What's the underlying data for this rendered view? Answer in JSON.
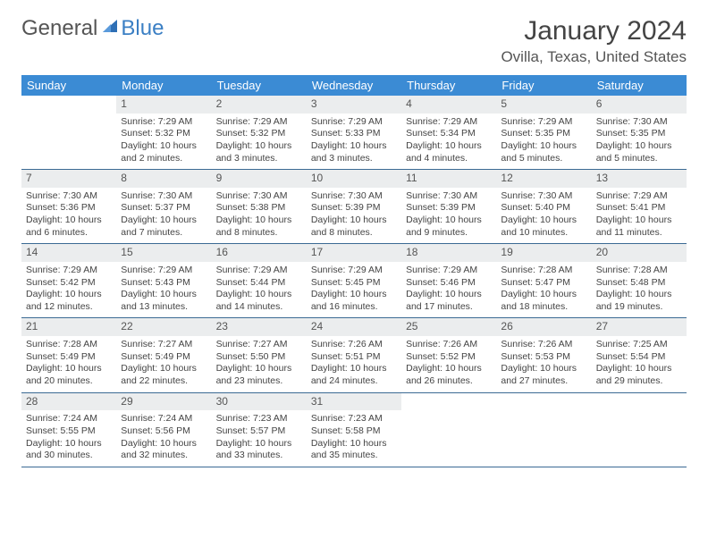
{
  "logo": {
    "part1": "General",
    "part2": "Blue"
  },
  "title": "January 2024",
  "location": "Ovilla, Texas, United States",
  "colors": {
    "header_bg": "#3b8bd4",
    "header_text": "#ffffff",
    "daynum_bg": "#ebedee",
    "row_border": "#3b6a94",
    "logo_blue": "#3b7fc4",
    "text": "#444444"
  },
  "day_names": [
    "Sunday",
    "Monday",
    "Tuesday",
    "Wednesday",
    "Thursday",
    "Friday",
    "Saturday"
  ],
  "weeks": [
    [
      {
        "n": "",
        "sr": "",
        "ss": "",
        "dl": ""
      },
      {
        "n": "1",
        "sr": "Sunrise: 7:29 AM",
        "ss": "Sunset: 5:32 PM",
        "dl": "Daylight: 10 hours and 2 minutes."
      },
      {
        "n": "2",
        "sr": "Sunrise: 7:29 AM",
        "ss": "Sunset: 5:32 PM",
        "dl": "Daylight: 10 hours and 3 minutes."
      },
      {
        "n": "3",
        "sr": "Sunrise: 7:29 AM",
        "ss": "Sunset: 5:33 PM",
        "dl": "Daylight: 10 hours and 3 minutes."
      },
      {
        "n": "4",
        "sr": "Sunrise: 7:29 AM",
        "ss": "Sunset: 5:34 PM",
        "dl": "Daylight: 10 hours and 4 minutes."
      },
      {
        "n": "5",
        "sr": "Sunrise: 7:29 AM",
        "ss": "Sunset: 5:35 PM",
        "dl": "Daylight: 10 hours and 5 minutes."
      },
      {
        "n": "6",
        "sr": "Sunrise: 7:30 AM",
        "ss": "Sunset: 5:35 PM",
        "dl": "Daylight: 10 hours and 5 minutes."
      }
    ],
    [
      {
        "n": "7",
        "sr": "Sunrise: 7:30 AM",
        "ss": "Sunset: 5:36 PM",
        "dl": "Daylight: 10 hours and 6 minutes."
      },
      {
        "n": "8",
        "sr": "Sunrise: 7:30 AM",
        "ss": "Sunset: 5:37 PM",
        "dl": "Daylight: 10 hours and 7 minutes."
      },
      {
        "n": "9",
        "sr": "Sunrise: 7:30 AM",
        "ss": "Sunset: 5:38 PM",
        "dl": "Daylight: 10 hours and 8 minutes."
      },
      {
        "n": "10",
        "sr": "Sunrise: 7:30 AM",
        "ss": "Sunset: 5:39 PM",
        "dl": "Daylight: 10 hours and 8 minutes."
      },
      {
        "n": "11",
        "sr": "Sunrise: 7:30 AM",
        "ss": "Sunset: 5:39 PM",
        "dl": "Daylight: 10 hours and 9 minutes."
      },
      {
        "n": "12",
        "sr": "Sunrise: 7:30 AM",
        "ss": "Sunset: 5:40 PM",
        "dl": "Daylight: 10 hours and 10 minutes."
      },
      {
        "n": "13",
        "sr": "Sunrise: 7:29 AM",
        "ss": "Sunset: 5:41 PM",
        "dl": "Daylight: 10 hours and 11 minutes."
      }
    ],
    [
      {
        "n": "14",
        "sr": "Sunrise: 7:29 AM",
        "ss": "Sunset: 5:42 PM",
        "dl": "Daylight: 10 hours and 12 minutes."
      },
      {
        "n": "15",
        "sr": "Sunrise: 7:29 AM",
        "ss": "Sunset: 5:43 PM",
        "dl": "Daylight: 10 hours and 13 minutes."
      },
      {
        "n": "16",
        "sr": "Sunrise: 7:29 AM",
        "ss": "Sunset: 5:44 PM",
        "dl": "Daylight: 10 hours and 14 minutes."
      },
      {
        "n": "17",
        "sr": "Sunrise: 7:29 AM",
        "ss": "Sunset: 5:45 PM",
        "dl": "Daylight: 10 hours and 16 minutes."
      },
      {
        "n": "18",
        "sr": "Sunrise: 7:29 AM",
        "ss": "Sunset: 5:46 PM",
        "dl": "Daylight: 10 hours and 17 minutes."
      },
      {
        "n": "19",
        "sr": "Sunrise: 7:28 AM",
        "ss": "Sunset: 5:47 PM",
        "dl": "Daylight: 10 hours and 18 minutes."
      },
      {
        "n": "20",
        "sr": "Sunrise: 7:28 AM",
        "ss": "Sunset: 5:48 PM",
        "dl": "Daylight: 10 hours and 19 minutes."
      }
    ],
    [
      {
        "n": "21",
        "sr": "Sunrise: 7:28 AM",
        "ss": "Sunset: 5:49 PM",
        "dl": "Daylight: 10 hours and 20 minutes."
      },
      {
        "n": "22",
        "sr": "Sunrise: 7:27 AM",
        "ss": "Sunset: 5:49 PM",
        "dl": "Daylight: 10 hours and 22 minutes."
      },
      {
        "n": "23",
        "sr": "Sunrise: 7:27 AM",
        "ss": "Sunset: 5:50 PM",
        "dl": "Daylight: 10 hours and 23 minutes."
      },
      {
        "n": "24",
        "sr": "Sunrise: 7:26 AM",
        "ss": "Sunset: 5:51 PM",
        "dl": "Daylight: 10 hours and 24 minutes."
      },
      {
        "n": "25",
        "sr": "Sunrise: 7:26 AM",
        "ss": "Sunset: 5:52 PM",
        "dl": "Daylight: 10 hours and 26 minutes."
      },
      {
        "n": "26",
        "sr": "Sunrise: 7:26 AM",
        "ss": "Sunset: 5:53 PM",
        "dl": "Daylight: 10 hours and 27 minutes."
      },
      {
        "n": "27",
        "sr": "Sunrise: 7:25 AM",
        "ss": "Sunset: 5:54 PM",
        "dl": "Daylight: 10 hours and 29 minutes."
      }
    ],
    [
      {
        "n": "28",
        "sr": "Sunrise: 7:24 AM",
        "ss": "Sunset: 5:55 PM",
        "dl": "Daylight: 10 hours and 30 minutes."
      },
      {
        "n": "29",
        "sr": "Sunrise: 7:24 AM",
        "ss": "Sunset: 5:56 PM",
        "dl": "Daylight: 10 hours and 32 minutes."
      },
      {
        "n": "30",
        "sr": "Sunrise: 7:23 AM",
        "ss": "Sunset: 5:57 PM",
        "dl": "Daylight: 10 hours and 33 minutes."
      },
      {
        "n": "31",
        "sr": "Sunrise: 7:23 AM",
        "ss": "Sunset: 5:58 PM",
        "dl": "Daylight: 10 hours and 35 minutes."
      },
      {
        "n": "",
        "sr": "",
        "ss": "",
        "dl": ""
      },
      {
        "n": "",
        "sr": "",
        "ss": "",
        "dl": ""
      },
      {
        "n": "",
        "sr": "",
        "ss": "",
        "dl": ""
      }
    ]
  ]
}
